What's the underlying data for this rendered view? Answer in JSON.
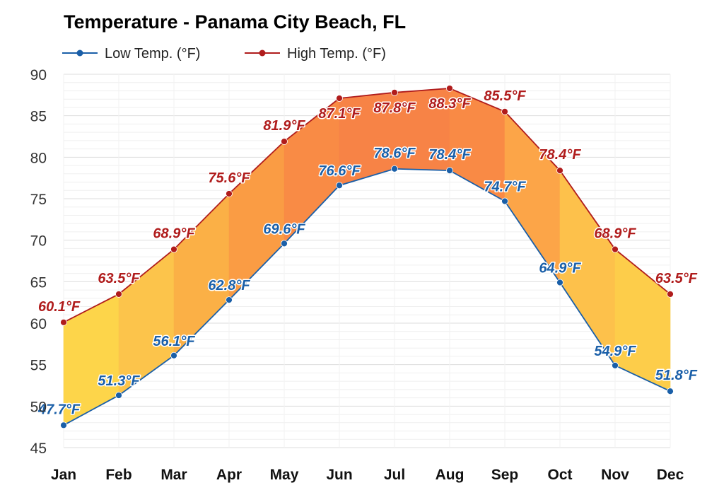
{
  "chart_data": {
    "type": "area",
    "title": "Temperature - Panama City Beach, FL",
    "xlabel": "",
    "ylabel": "",
    "categories": [
      "Jan",
      "Feb",
      "Mar",
      "Apr",
      "May",
      "Jun",
      "Jul",
      "Aug",
      "Sep",
      "Oct",
      "Nov",
      "Dec"
    ],
    "ylim": [
      45,
      90
    ],
    "yticks": [
      45,
      50,
      55,
      60,
      65,
      70,
      75,
      80,
      85,
      90
    ],
    "grid": true,
    "legend_position": "top-left",
    "series": [
      {
        "name": "Low Temp. (°F)",
        "color": "#1a5fa8",
        "values": [
          47.7,
          51.3,
          56.1,
          62.8,
          69.6,
          76.6,
          78.6,
          78.4,
          74.7,
          64.9,
          54.9,
          51.8
        ],
        "labels": [
          "47.7°F",
          "51.3°F",
          "56.1°F",
          "62.8°F",
          "69.6°F",
          "76.6°F",
          "78.6°F",
          "78.4°F",
          "74.7°F",
          "64.9°F",
          "54.9°F",
          "51.8°F"
        ]
      },
      {
        "name": "High Temp. (°F)",
        "color": "#b01c1c",
        "values": [
          60.1,
          63.5,
          68.9,
          75.6,
          81.9,
          87.1,
          87.8,
          88.3,
          85.5,
          78.4,
          68.9,
          63.5
        ],
        "labels": [
          "60.1°F",
          "63.5°F",
          "68.9°F",
          "75.6°F",
          "81.9°F",
          "87.1°F",
          "87.8°F",
          "88.3°F",
          "85.5°F",
          "78.4°F",
          "68.9°F",
          "63.5°F"
        ]
      }
    ],
    "fill_colors": [
      "#fdd54a",
      "#fcc44b",
      "#fbb046",
      "#fa9c44",
      "#f98b45",
      "#f78346",
      "#f78346",
      "#f98a45",
      "#fca548",
      "#fdc14b",
      "#fdcd4a"
    ]
  }
}
